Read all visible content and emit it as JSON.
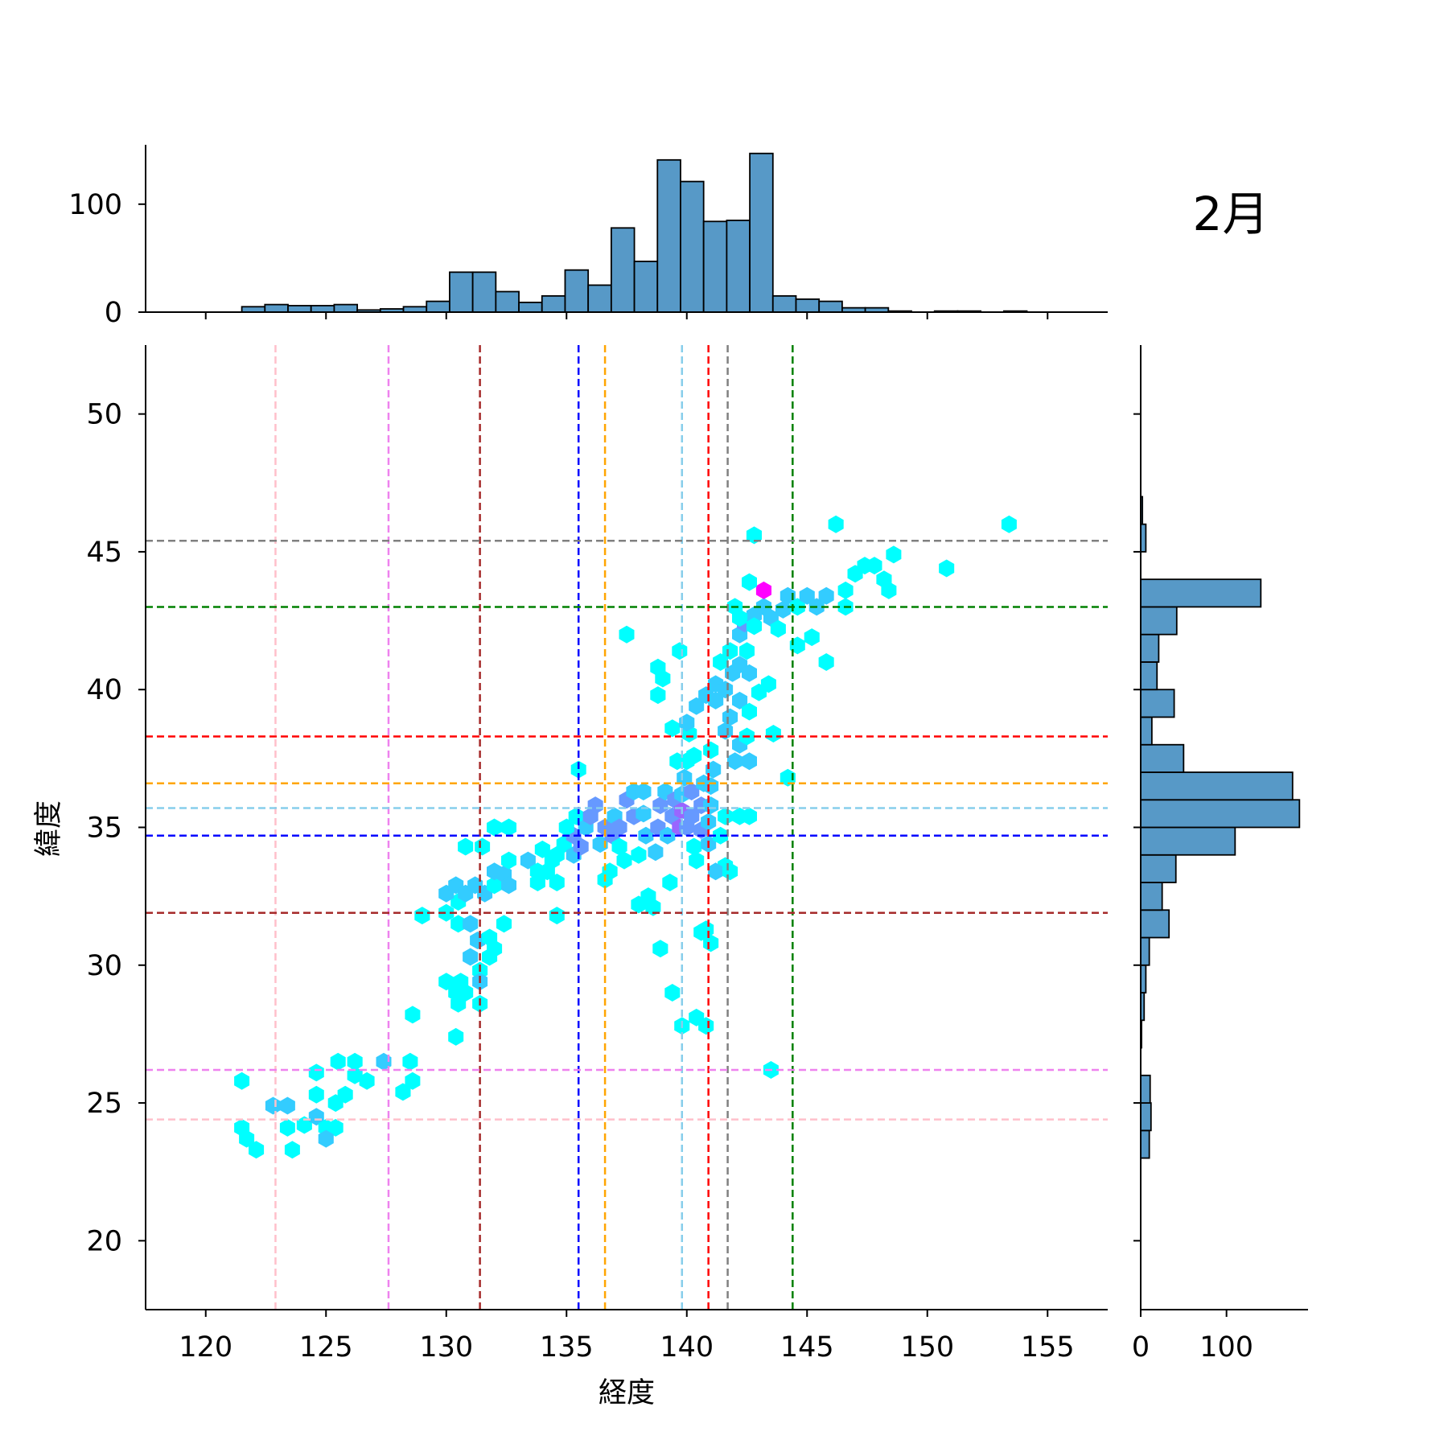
{
  "chart_data": {
    "type": "hexbin-jointplot",
    "title": "2月",
    "xlabel": "経度",
    "ylabel": "緯度",
    "xlim": [
      117.5,
      157.5
    ],
    "ylim": [
      17.5,
      52.5
    ],
    "x_ticks": [
      120,
      125,
      130,
      135,
      140,
      145,
      150,
      155
    ],
    "y_ticks": [
      20,
      25,
      30,
      35,
      40,
      45,
      50
    ],
    "top_hist": {
      "y_ticks": [
        0,
        100
      ],
      "ylim": [
        0,
        155
      ],
      "bin_start": 121.5,
      "bin_width": 0.96,
      "counts": [
        5,
        7,
        6,
        6,
        7,
        2,
        3,
        5,
        10,
        37,
        37,
        19,
        9,
        15,
        39,
        25,
        78,
        47,
        141,
        121,
        84,
        85,
        147,
        15,
        12,
        10,
        4,
        4,
        1,
        0,
        1,
        1,
        0,
        1,
        0
      ]
    },
    "right_hist": {
      "x_ticks": [
        0,
        100
      ],
      "xlim": [
        0,
        195
      ],
      "bin_start": 23.0,
      "bin_width": 1.0,
      "counts": [
        10,
        12,
        11,
        0,
        1,
        4,
        6,
        10,
        33,
        25,
        41,
        110,
        185,
        177,
        50,
        13,
        39,
        19,
        21,
        42,
        140,
        0,
        6,
        2
      ]
    },
    "vlines": [
      {
        "x": 122.9,
        "color": "#ffc0cb"
      },
      {
        "x": 127.6,
        "color": "#ee82ee"
      },
      {
        "x": 131.4,
        "color": "#a52a2a"
      },
      {
        "x": 135.5,
        "color": "#0000ff"
      },
      {
        "x": 136.6,
        "color": "#ffa500"
      },
      {
        "x": 139.8,
        "color": "#87ceeb"
      },
      {
        "x": 140.9,
        "color": "#ff0000"
      },
      {
        "x": 141.7,
        "color": "#808080"
      },
      {
        "x": 144.4,
        "color": "#008000"
      }
    ],
    "hlines": [
      {
        "y": 45.4,
        "color": "#808080"
      },
      {
        "y": 43.0,
        "color": "#008000"
      },
      {
        "y": 38.3,
        "color": "#ff0000"
      },
      {
        "y": 36.6,
        "color": "#ffa500"
      },
      {
        "y": 35.7,
        "color": "#87ceeb"
      },
      {
        "y": 34.7,
        "color": "#0000ff"
      },
      {
        "y": 31.9,
        "color": "#a52a2a"
      },
      {
        "y": 26.2,
        "color": "#ee82ee"
      },
      {
        "y": 24.4,
        "color": "#ffc0cb"
      }
    ],
    "hexbins": [
      [
        123.4,
        24.1,
        1
      ],
      [
        122.1,
        23.3,
        1
      ],
      [
        121.7,
        23.7,
        1
      ],
      [
        121.5,
        24.1,
        1
      ],
      [
        121.5,
        25.8,
        1
      ],
      [
        122.8,
        24.9,
        2
      ],
      [
        123.4,
        24.9,
        2
      ],
      [
        124.1,
        24.2,
        1
      ],
      [
        123.6,
        23.3,
        1
      ],
      [
        124.6,
        24.5,
        2
      ],
      [
        125.0,
        24.1,
        1
      ],
      [
        125.4,
        24.1,
        1
      ],
      [
        125.0,
        23.7,
        2
      ],
      [
        124.6,
        25.3,
        1
      ],
      [
        124.6,
        26.1,
        1
      ],
      [
        125.4,
        25.0,
        1
      ],
      [
        125.8,
        25.3,
        1
      ],
      [
        125.5,
        26.5,
        1
      ],
      [
        126.2,
        26.5,
        1
      ],
      [
        126.2,
        26.0,
        1
      ],
      [
        126.7,
        25.8,
        1
      ],
      [
        127.4,
        26.5,
        2
      ],
      [
        128.5,
        26.5,
        1
      ],
      [
        128.6,
        25.8,
        1
      ],
      [
        128.2,
        25.4,
        1
      ],
      [
        128.6,
        28.2,
        1
      ],
      [
        130.4,
        27.4,
        1
      ],
      [
        131.4,
        28.6,
        1
      ],
      [
        130.6,
        29.4,
        1
      ],
      [
        130.0,
        29.4,
        1
      ],
      [
        130.4,
        29.0,
        1
      ],
      [
        130.8,
        29.0,
        1
      ],
      [
        130.5,
        28.6,
        1
      ],
      [
        129.0,
        31.8,
        1
      ],
      [
        130.0,
        31.9,
        1
      ],
      [
        130.5,
        31.5,
        1
      ],
      [
        131.0,
        31.5,
        2
      ],
      [
        131.3,
        30.9,
        2
      ],
      [
        131.0,
        30.3,
        2
      ],
      [
        131.8,
        30.3,
        1
      ],
      [
        131.4,
        29.8,
        1
      ],
      [
        131.4,
        29.4,
        2
      ],
      [
        132.0,
        30.6,
        1
      ],
      [
        132.4,
        31.5,
        1
      ],
      [
        131.8,
        31.0,
        1
      ],
      [
        130.5,
        32.3,
        1
      ],
      [
        130.0,
        32.6,
        2
      ],
      [
        130.4,
        32.9,
        2
      ],
      [
        130.8,
        32.6,
        2
      ],
      [
        131.2,
        32.9,
        2
      ],
      [
        131.6,
        32.6,
        2
      ],
      [
        132.0,
        32.9,
        1
      ],
      [
        132.0,
        33.4,
        2
      ],
      [
        132.4,
        33.3,
        2
      ],
      [
        132.6,
        32.9,
        2
      ],
      [
        131.5,
        34.3,
        1
      ],
      [
        130.8,
        34.3,
        1
      ],
      [
        132.0,
        35.0,
        1
      ],
      [
        132.6,
        35.0,
        1
      ],
      [
        132.6,
        33.8,
        1
      ],
      [
        133.4,
        33.8,
        2
      ],
      [
        133.8,
        33.4,
        1
      ],
      [
        133.8,
        33.0,
        1
      ],
      [
        134.2,
        33.4,
        1
      ],
      [
        134.4,
        33.8,
        1
      ],
      [
        134.6,
        34.0,
        1
      ],
      [
        134.0,
        34.2,
        1
      ],
      [
        134.9,
        34.4,
        1
      ],
      [
        135.3,
        34.0,
        2
      ],
      [
        135.6,
        34.3,
        3
      ],
      [
        135.3,
        34.7,
        3
      ],
      [
        135.0,
        35.0,
        1
      ],
      [
        135.4,
        35.4,
        1
      ],
      [
        135.8,
        35.0,
        2
      ],
      [
        134.6,
        33.0,
        1
      ],
      [
        134.6,
        31.8,
        1
      ],
      [
        135.5,
        37.1,
        1
      ],
      [
        136.0,
        35.4,
        3
      ],
      [
        136.2,
        35.8,
        3
      ],
      [
        136.4,
        34.4,
        2
      ],
      [
        136.6,
        35.0,
        3
      ],
      [
        136.6,
        33.1,
        1
      ],
      [
        136.8,
        33.4,
        1
      ],
      [
        136.9,
        34.7,
        3
      ],
      [
        137.0,
        35.4,
        2
      ],
      [
        137.2,
        35.0,
        3
      ],
      [
        137.2,
        34.3,
        1
      ],
      [
        137.4,
        33.8,
        1
      ],
      [
        137.5,
        36.0,
        3
      ],
      [
        137.8,
        35.4,
        3
      ],
      [
        137.8,
        36.3,
        2
      ],
      [
        138.2,
        36.3,
        2
      ],
      [
        138.2,
        35.5,
        2
      ],
      [
        138.3,
        34.7,
        2
      ],
      [
        138.0,
        34.0,
        1
      ],
      [
        138.0,
        32.2,
        1
      ],
      [
        138.4,
        32.5,
        1
      ],
      [
        138.6,
        32.1,
        1
      ],
      [
        138.7,
        34.1,
        2
      ],
      [
        138.8,
        35.0,
        3
      ],
      [
        138.9,
        35.8,
        3
      ],
      [
        139.1,
        36.3,
        2
      ],
      [
        139.2,
        34.7,
        2
      ],
      [
        139.4,
        35.4,
        3
      ],
      [
        139.5,
        36.0,
        3
      ],
      [
        139.7,
        35.0,
        4
      ],
      [
        139.8,
        35.6,
        4
      ],
      [
        140.0,
        35.0,
        3
      ],
      [
        140.2,
        35.4,
        3
      ],
      [
        139.8,
        36.2,
        2
      ],
      [
        139.9,
        36.8,
        2
      ],
      [
        140.2,
        36.3,
        3
      ],
      [
        140.3,
        34.3,
        1
      ],
      [
        140.4,
        33.8,
        1
      ],
      [
        140.6,
        34.9,
        3
      ],
      [
        140.6,
        35.8,
        3
      ],
      [
        140.7,
        36.6,
        2
      ],
      [
        140.9,
        35.2,
        2
      ],
      [
        140.9,
        34.4,
        2
      ],
      [
        141.0,
        35.8,
        2
      ],
      [
        141.0,
        36.5,
        2
      ],
      [
        141.1,
        37.1,
        2
      ],
      [
        141.4,
        34.7,
        1
      ],
      [
        141.6,
        33.6,
        1
      ],
      [
        141.2,
        33.4,
        2
      ],
      [
        141.8,
        33.4,
        1
      ],
      [
        141.6,
        35.4,
        1
      ],
      [
        142.2,
        35.4,
        1
      ],
      [
        142.6,
        35.4,
        1
      ],
      [
        142.0,
        37.4,
        2
      ],
      [
        142.2,
        38.0,
        2
      ],
      [
        142.5,
        38.3,
        1
      ],
      [
        142.6,
        37.4,
        2
      ],
      [
        141.0,
        37.8,
        1
      ],
      [
        140.3,
        37.6,
        1
      ],
      [
        140.0,
        37.4,
        1
      ],
      [
        139.4,
        38.6,
        1
      ],
      [
        139.6,
        37.4,
        1
      ],
      [
        140.6,
        31.2,
        1
      ],
      [
        141.0,
        30.8,
        1
      ],
      [
        140.8,
        31.3,
        1
      ],
      [
        139.3,
        33.0,
        1
      ],
      [
        138.9,
        30.6,
        1
      ],
      [
        139.4,
        29.0,
        1
      ],
      [
        140.4,
        28.1,
        1
      ],
      [
        140.8,
        27.8,
        1
      ],
      [
        139.8,
        27.8,
        1
      ],
      [
        143.5,
        26.2,
        1
      ],
      [
        144.2,
        36.8,
        1
      ],
      [
        140.1,
        38.4,
        1
      ],
      [
        140.0,
        38.8,
        2
      ],
      [
        140.4,
        39.4,
        2
      ],
      [
        140.8,
        39.8,
        2
      ],
      [
        141.2,
        40.2,
        2
      ],
      [
        141.2,
        39.6,
        2
      ],
      [
        141.6,
        40.0,
        2
      ],
      [
        141.9,
        40.6,
        2
      ],
      [
        141.4,
        41.0,
        1
      ],
      [
        141.8,
        41.4,
        1
      ],
      [
        142.2,
        42.0,
        2
      ],
      [
        142.4,
        42.4,
        3
      ],
      [
        142.8,
        42.7,
        2
      ],
      [
        143.2,
        43.0,
        2
      ],
      [
        143.5,
        42.6,
        2
      ],
      [
        144.0,
        42.9,
        2
      ],
      [
        144.2,
        43.4,
        2
      ],
      [
        144.6,
        43.0,
        1
      ],
      [
        145.0,
        43.4,
        2
      ],
      [
        145.4,
        43.0,
        2
      ],
      [
        145.8,
        43.4,
        2
      ],
      [
        145.2,
        41.9,
        1
      ],
      [
        145.8,
        41.0,
        1
      ],
      [
        144.6,
        41.6,
        1
      ],
      [
        143.8,
        42.2,
        1
      ],
      [
        143.2,
        43.6,
        5
      ],
      [
        142.6,
        43.9,
        1
      ],
      [
        142.0,
        43.0,
        1
      ],
      [
        142.2,
        42.6,
        1
      ],
      [
        142.8,
        42.3,
        1
      ],
      [
        142.5,
        41.4,
        1
      ],
      [
        142.2,
        40.9,
        2
      ],
      [
        142.6,
        40.6,
        2
      ],
      [
        142.2,
        39.6,
        2
      ],
      [
        142.6,
        39.2,
        1
      ],
      [
        143.0,
        39.9,
        1
      ],
      [
        143.4,
        40.2,
        1
      ],
      [
        143.6,
        38.4,
        1
      ],
      [
        141.6,
        38.5,
        2
      ],
      [
        141.8,
        39.0,
        2
      ],
      [
        137.5,
        42.0,
        1
      ],
      [
        139.7,
        41.4,
        1
      ],
      [
        138.8,
        40.8,
        1
      ],
      [
        139.0,
        40.4,
        1
      ],
      [
        138.8,
        39.8,
        1
      ],
      [
        146.6,
        43.6,
        1
      ],
      [
        147.0,
        44.2,
        1
      ],
      [
        147.4,
        44.5,
        1
      ],
      [
        147.8,
        44.5,
        1
      ],
      [
        148.2,
        44.0,
        1
      ],
      [
        148.6,
        44.9,
        1
      ],
      [
        150.8,
        44.4,
        1
      ],
      [
        146.2,
        46.0,
        1
      ],
      [
        153.4,
        46.0,
        1
      ],
      [
        142.8,
        45.6,
        1
      ],
      [
        148.4,
        43.6,
        1
      ],
      [
        146.6,
        43.0,
        1
      ]
    ]
  }
}
